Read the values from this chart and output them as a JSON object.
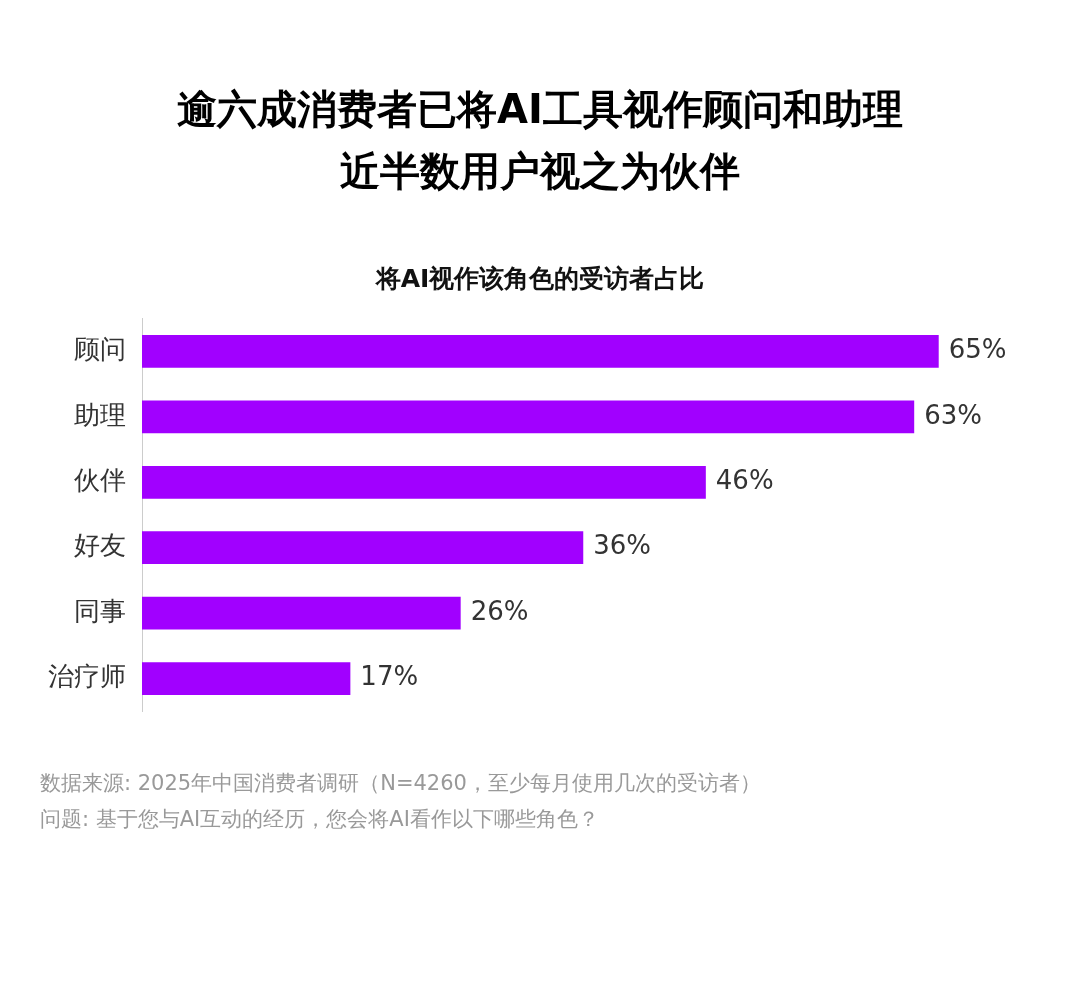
{
  "chart_data": {
    "type": "bar",
    "orientation": "horizontal",
    "title": "逾六成消费者已将AI工具视作顾问和助理近半数用户视之为伙伴",
    "subtitle": "将AI视作该角色的受访者占比",
    "categories": [
      "顾问",
      "助理",
      "伙伴",
      "好友",
      "同事",
      "治疗师"
    ],
    "values": [
      65,
      63,
      46,
      36,
      26,
      17
    ],
    "value_labels": [
      "65%",
      "63%",
      "46%",
      "36%",
      "26%",
      "17%"
    ],
    "color": "#a100ff",
    "grid": false,
    "legend": false,
    "annotations": [
      "数据来源: 2025年中国消费者调研（N=4260，至少每月使用几次的受访者）",
      "问题: 基于您与AI互动的经历，您会将AI看作以下哪些角色？"
    ]
  }
}
